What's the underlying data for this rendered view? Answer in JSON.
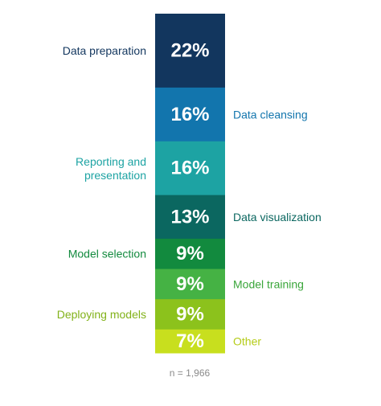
{
  "chart_data": {
    "type": "bar",
    "orientation": "stacked-vertical",
    "unit": "%",
    "segments": [
      {
        "label": "Data preparation",
        "value": 22,
        "value_label": "22%",
        "color": "#12365e",
        "label_color": "#12365e",
        "side": "left"
      },
      {
        "label": "Data cleansing",
        "value": 16,
        "value_label": "16%",
        "color": "#1275ad",
        "label_color": "#1275ad",
        "side": "right"
      },
      {
        "label": "Reporting and presentation",
        "value": 16,
        "value_label": "16%",
        "color": "#1da3a3",
        "label_color": "#1da3a3",
        "side": "left"
      },
      {
        "label": "Data visualization",
        "value": 13,
        "value_label": "13%",
        "color": "#0b6760",
        "label_color": "#0b6760",
        "side": "right"
      },
      {
        "label": "Model selection",
        "value": 9,
        "value_label": "9%",
        "color": "#128a3e",
        "label_color": "#128a3e",
        "side": "left"
      },
      {
        "label": "Model training",
        "value": 9,
        "value_label": "9%",
        "color": "#45b244",
        "label_color": "#3aa63a",
        "side": "right"
      },
      {
        "label": "Deploying models",
        "value": 9,
        "value_label": "9%",
        "color": "#8cc21c",
        "label_color": "#82b21a",
        "side": "left"
      },
      {
        "label": "Other",
        "value": 7,
        "value_label": "7%",
        "color": "#c8df1e",
        "label_color": "#b5cc19",
        "side": "right"
      }
    ],
    "note": "n = 1,966"
  }
}
